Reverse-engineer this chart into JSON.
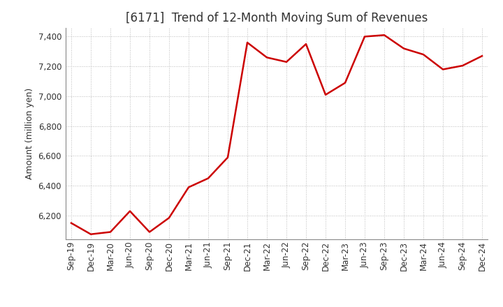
{
  "title": "[6171]  Trend of 12-Month Moving Sum of Revenues",
  "ylabel": "Amount (million yen)",
  "x_labels": [
    "Sep-19",
    "Dec-19",
    "Mar-20",
    "Jun-20",
    "Sep-20",
    "Dec-20",
    "Mar-21",
    "Jun-21",
    "Sep-21",
    "Dec-21",
    "Mar-22",
    "Jun-22",
    "Sep-22",
    "Dec-22",
    "Mar-23",
    "Jun-23",
    "Sep-23",
    "Dec-23",
    "Mar-24",
    "Jun-24",
    "Sep-24",
    "Dec-24"
  ],
  "y_values": [
    6150,
    6075,
    6090,
    6230,
    6090,
    6185,
    6390,
    6450,
    6590,
    7360,
    7260,
    7230,
    7350,
    7010,
    7090,
    7400,
    7410,
    7320,
    7280,
    7180,
    7205,
    7270
  ],
  "line_color": "#cc0000",
  "line_width": 1.8,
  "ylim_min": 6040,
  "ylim_max": 7460,
  "yticks": [
    6200,
    6400,
    6600,
    6800,
    7000,
    7200,
    7400
  ],
  "background_color": "#ffffff",
  "plot_bg_color": "#ffffff",
  "grid_color": "#bbbbbb",
  "title_fontsize": 12,
  "axis_fontsize": 9,
  "tick_fontsize": 8.5
}
